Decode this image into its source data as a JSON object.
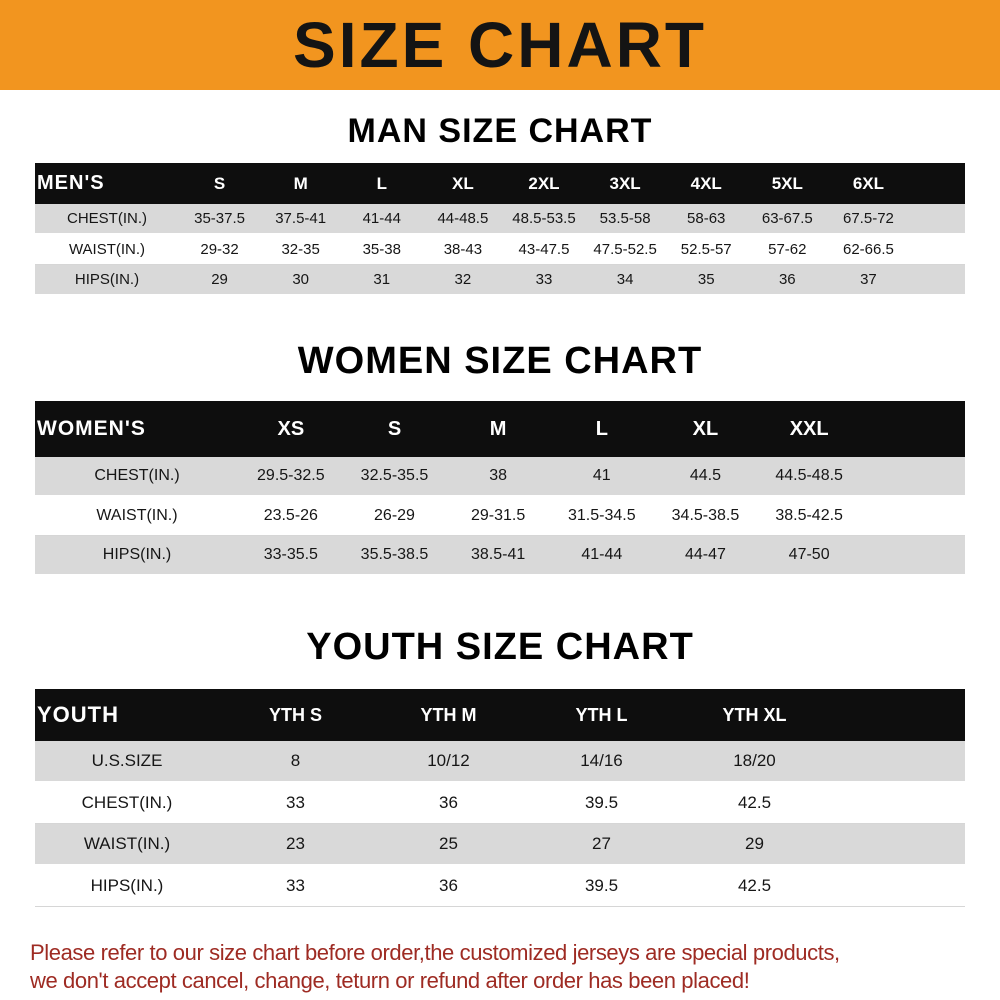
{
  "banner": {
    "title": "SIZE CHART"
  },
  "colors": {
    "banner_bg": "#F2951F",
    "header_row_bg": "#0E0E0E",
    "stripe": "#D9D9D9",
    "footer_text": "#9E2B23"
  },
  "sections": [
    {
      "heading": "MAN SIZE CHART",
      "table": {
        "header_label": "MEN'S",
        "columns": [
          "S",
          "M",
          "L",
          "XL",
          "2XL",
          "3XL",
          "4XL",
          "5XL",
          "6XL"
        ],
        "rows": [
          {
            "label": "CHEST(IN.)",
            "values": [
              "35-37.5",
              "37.5-41",
              "41-44",
              "44-48.5",
              "48.5-53.5",
              "53.5-58",
              "58-63",
              "63-67.5",
              "67.5-72"
            ]
          },
          {
            "label": "WAIST(IN.)",
            "values": [
              "29-32",
              "32-35",
              "35-38",
              "38-43",
              "43-47.5",
              "47.5-52.5",
              "52.5-57",
              "57-62",
              "62-66.5"
            ]
          },
          {
            "label": "HIPS(IN.)",
            "values": [
              "29",
              "30",
              "31",
              "32",
              "33",
              "34",
              "35",
              "36",
              "37"
            ]
          }
        ]
      }
    },
    {
      "heading": "WOMEN SIZE CHART",
      "table": {
        "header_label": "WOMEN'S",
        "columns": [
          "XS",
          "S",
          "M",
          "L",
          "XL",
          "XXL"
        ],
        "rows": [
          {
            "label": "CHEST(IN.)",
            "values": [
              "29.5-32.5",
              "32.5-35.5",
              "38",
              "41",
              "44.5",
              "44.5-48.5"
            ]
          },
          {
            "label": "WAIST(IN.)",
            "values": [
              "23.5-26",
              "26-29",
              "29-31.5",
              "31.5-34.5",
              "34.5-38.5",
              "38.5-42.5"
            ]
          },
          {
            "label": "HIPS(IN.)",
            "values": [
              "33-35.5",
              "35.5-38.5",
              "38.5-41",
              "41-44",
              "44-47",
              "47-50"
            ]
          }
        ]
      }
    },
    {
      "heading": "YOUTH SIZE CHART",
      "table": {
        "header_label": "YOUTH",
        "columns": [
          "YTH S",
          "YTH M",
          "YTH L",
          "YTH XL"
        ],
        "rows": [
          {
            "label": "U.S.SIZE",
            "values": [
              "8",
              "10/12",
              "14/16",
              "18/20"
            ]
          },
          {
            "label": "CHEST(IN.)",
            "values": [
              "33",
              "36",
              "39.5",
              "42.5"
            ]
          },
          {
            "label": "WAIST(IN.)",
            "values": [
              "23",
              "25",
              "27",
              "29"
            ]
          },
          {
            "label": "HIPS(IN.)",
            "values": [
              "33",
              "36",
              "39.5",
              "42.5"
            ]
          }
        ]
      }
    }
  ],
  "footer": {
    "line1": "Please refer to our size chart before order,the customized jerseys are special products,",
    "line2": "we don't accept cancel, change, teturn or refund after order has been placed!"
  }
}
